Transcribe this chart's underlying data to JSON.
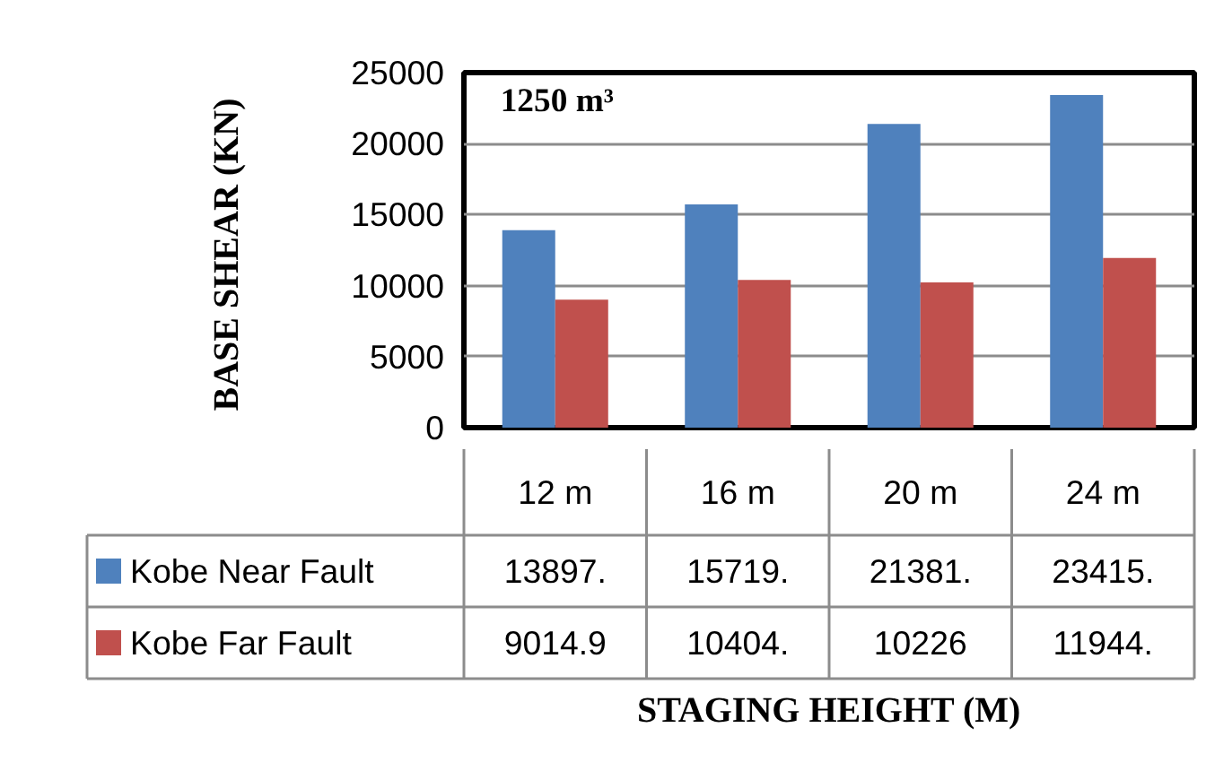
{
  "chart_data": {
    "type": "bar",
    "title": "1250 m³",
    "annotations": [
      "STAGING HEIGHT (M)"
    ],
    "ylabel": "BASE  SHEAR (KN)",
    "categories": [
      "12 m",
      "16 m",
      "20 m",
      "24 m"
    ],
    "series": [
      {
        "name": "Kobe Near Fault",
        "color": "#4f81bd",
        "values": [
          13897,
          15719,
          21381,
          23415
        ],
        "value_labels": [
          "13897.",
          "15719.",
          "21381.",
          "23415."
        ]
      },
      {
        "name": "Kobe Far Fault",
        "color": "#c0504d",
        "values": [
          9014.9,
          10404,
          10226,
          11944
        ],
        "value_labels": [
          "9014.9",
          "10404.",
          "10226",
          "11944."
        ]
      }
    ],
    "ylim": [
      0,
      25000
    ],
    "yticks": [
      0,
      5000,
      10000,
      15000,
      20000,
      25000
    ],
    "grid": "y",
    "legend": "bottom",
    "tick_labels": "y"
  }
}
